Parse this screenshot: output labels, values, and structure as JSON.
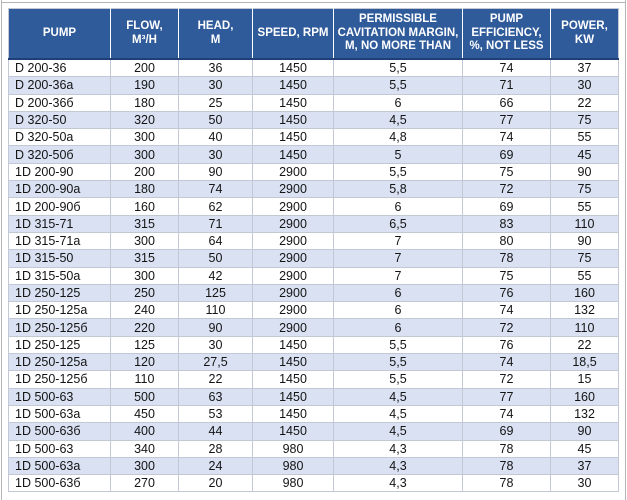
{
  "table": {
    "column_keys": [
      "pump",
      "flow",
      "head",
      "speed",
      "cavitation",
      "efficiency",
      "power"
    ],
    "columns": [
      {
        "key": "pump",
        "label": "PUMP"
      },
      {
        "key": "flow",
        "label": "FLOW,\nM³/H"
      },
      {
        "key": "head",
        "label": "HEAD,\nM"
      },
      {
        "key": "speed",
        "label": "SPEED, RPM"
      },
      {
        "key": "cavitation",
        "label": "PERMISSIBLE\nCAVITATION MARGIN,\nM, NO MORE THAN"
      },
      {
        "key": "efficiency",
        "label": "PUMP\nEFFICIENCY,\n%, NOT LESS"
      },
      {
        "key": "power",
        "label": "POWER,\nKW"
      }
    ],
    "rows": [
      [
        "D 200-36",
        "200",
        "36",
        "1450",
        "5,5",
        "74",
        "37"
      ],
      [
        "D 200-36a",
        "190",
        "30",
        "1450",
        "5,5",
        "71",
        "30"
      ],
      [
        "D 200-36б",
        "180",
        "25",
        "1450",
        "6",
        "66",
        "22"
      ],
      [
        "D 320-50",
        "320",
        "50",
        "1450",
        "4,5",
        "77",
        "75"
      ],
      [
        "D 320-50a",
        "300",
        "40",
        "1450",
        "4,8",
        "74",
        "55"
      ],
      [
        "D 320-50б",
        "300",
        "30",
        "1450",
        "5",
        "69",
        "45"
      ],
      [
        "1D 200-90",
        "200",
        "90",
        "2900",
        "5,5",
        "75",
        "90"
      ],
      [
        "1D 200-90a",
        "180",
        "74",
        "2900",
        "5,8",
        "72",
        "75"
      ],
      [
        "1D 200-90б",
        "160",
        "62",
        "2900",
        "6",
        "69",
        "55"
      ],
      [
        "1D 315-71",
        "315",
        "71",
        "2900",
        "6,5",
        "83",
        "110"
      ],
      [
        "1D 315-71a",
        "300",
        "64",
        "2900",
        "7",
        "80",
        "90"
      ],
      [
        "1D 315-50",
        "315",
        "50",
        "2900",
        "7",
        "78",
        "75"
      ],
      [
        "1D 315-50a",
        "300",
        "42",
        "2900",
        "7",
        "75",
        "55"
      ],
      [
        "1D 250-125",
        "250",
        "125",
        "2900",
        "6",
        "76",
        "160"
      ],
      [
        "1D 250-125a",
        "240",
        "110",
        "2900",
        "6",
        "74",
        "132"
      ],
      [
        "1D 250-125б",
        "220",
        "90",
        "2900",
        "6",
        "72",
        "110"
      ],
      [
        "1D 250-125",
        "125",
        "30",
        "1450",
        "5,5",
        "76",
        "22"
      ],
      [
        "1D 250-125a",
        "120",
        "27,5",
        "1450",
        "5,5",
        "74",
        "18,5"
      ],
      [
        "1D 250-125б",
        "110",
        "22",
        "1450",
        "5,5",
        "72",
        "15"
      ],
      [
        "1D 500-63",
        "500",
        "63",
        "1450",
        "4,5",
        "77",
        "160"
      ],
      [
        "1D 500-63a",
        "450",
        "53",
        "1450",
        "4,5",
        "74",
        "132"
      ],
      [
        "1D 500-63б",
        "400",
        "44",
        "1450",
        "4,5",
        "69",
        "90"
      ],
      [
        "1D 500-63",
        "340",
        "28",
        "980",
        "4,3",
        "78",
        "45"
      ],
      [
        "1D 500-63a",
        "300",
        "24",
        "980",
        "4,3",
        "78",
        "37"
      ],
      [
        "1D 500-63б",
        "270",
        "20",
        "980",
        "4,3",
        "78",
        "30"
      ]
    ]
  },
  "colors": {
    "header_bg": "#2F5B9B",
    "header_text": "#FFFFFF",
    "row_bg": "#FFFFFF",
    "row_alt_bg": "#D9E1F2",
    "body_text": "#141414",
    "grid_line": "#C3C9D4",
    "header_divider": "#FFFFFF",
    "header_underline": "#1F3F77",
    "frame_line": "#B5B5B5"
  }
}
